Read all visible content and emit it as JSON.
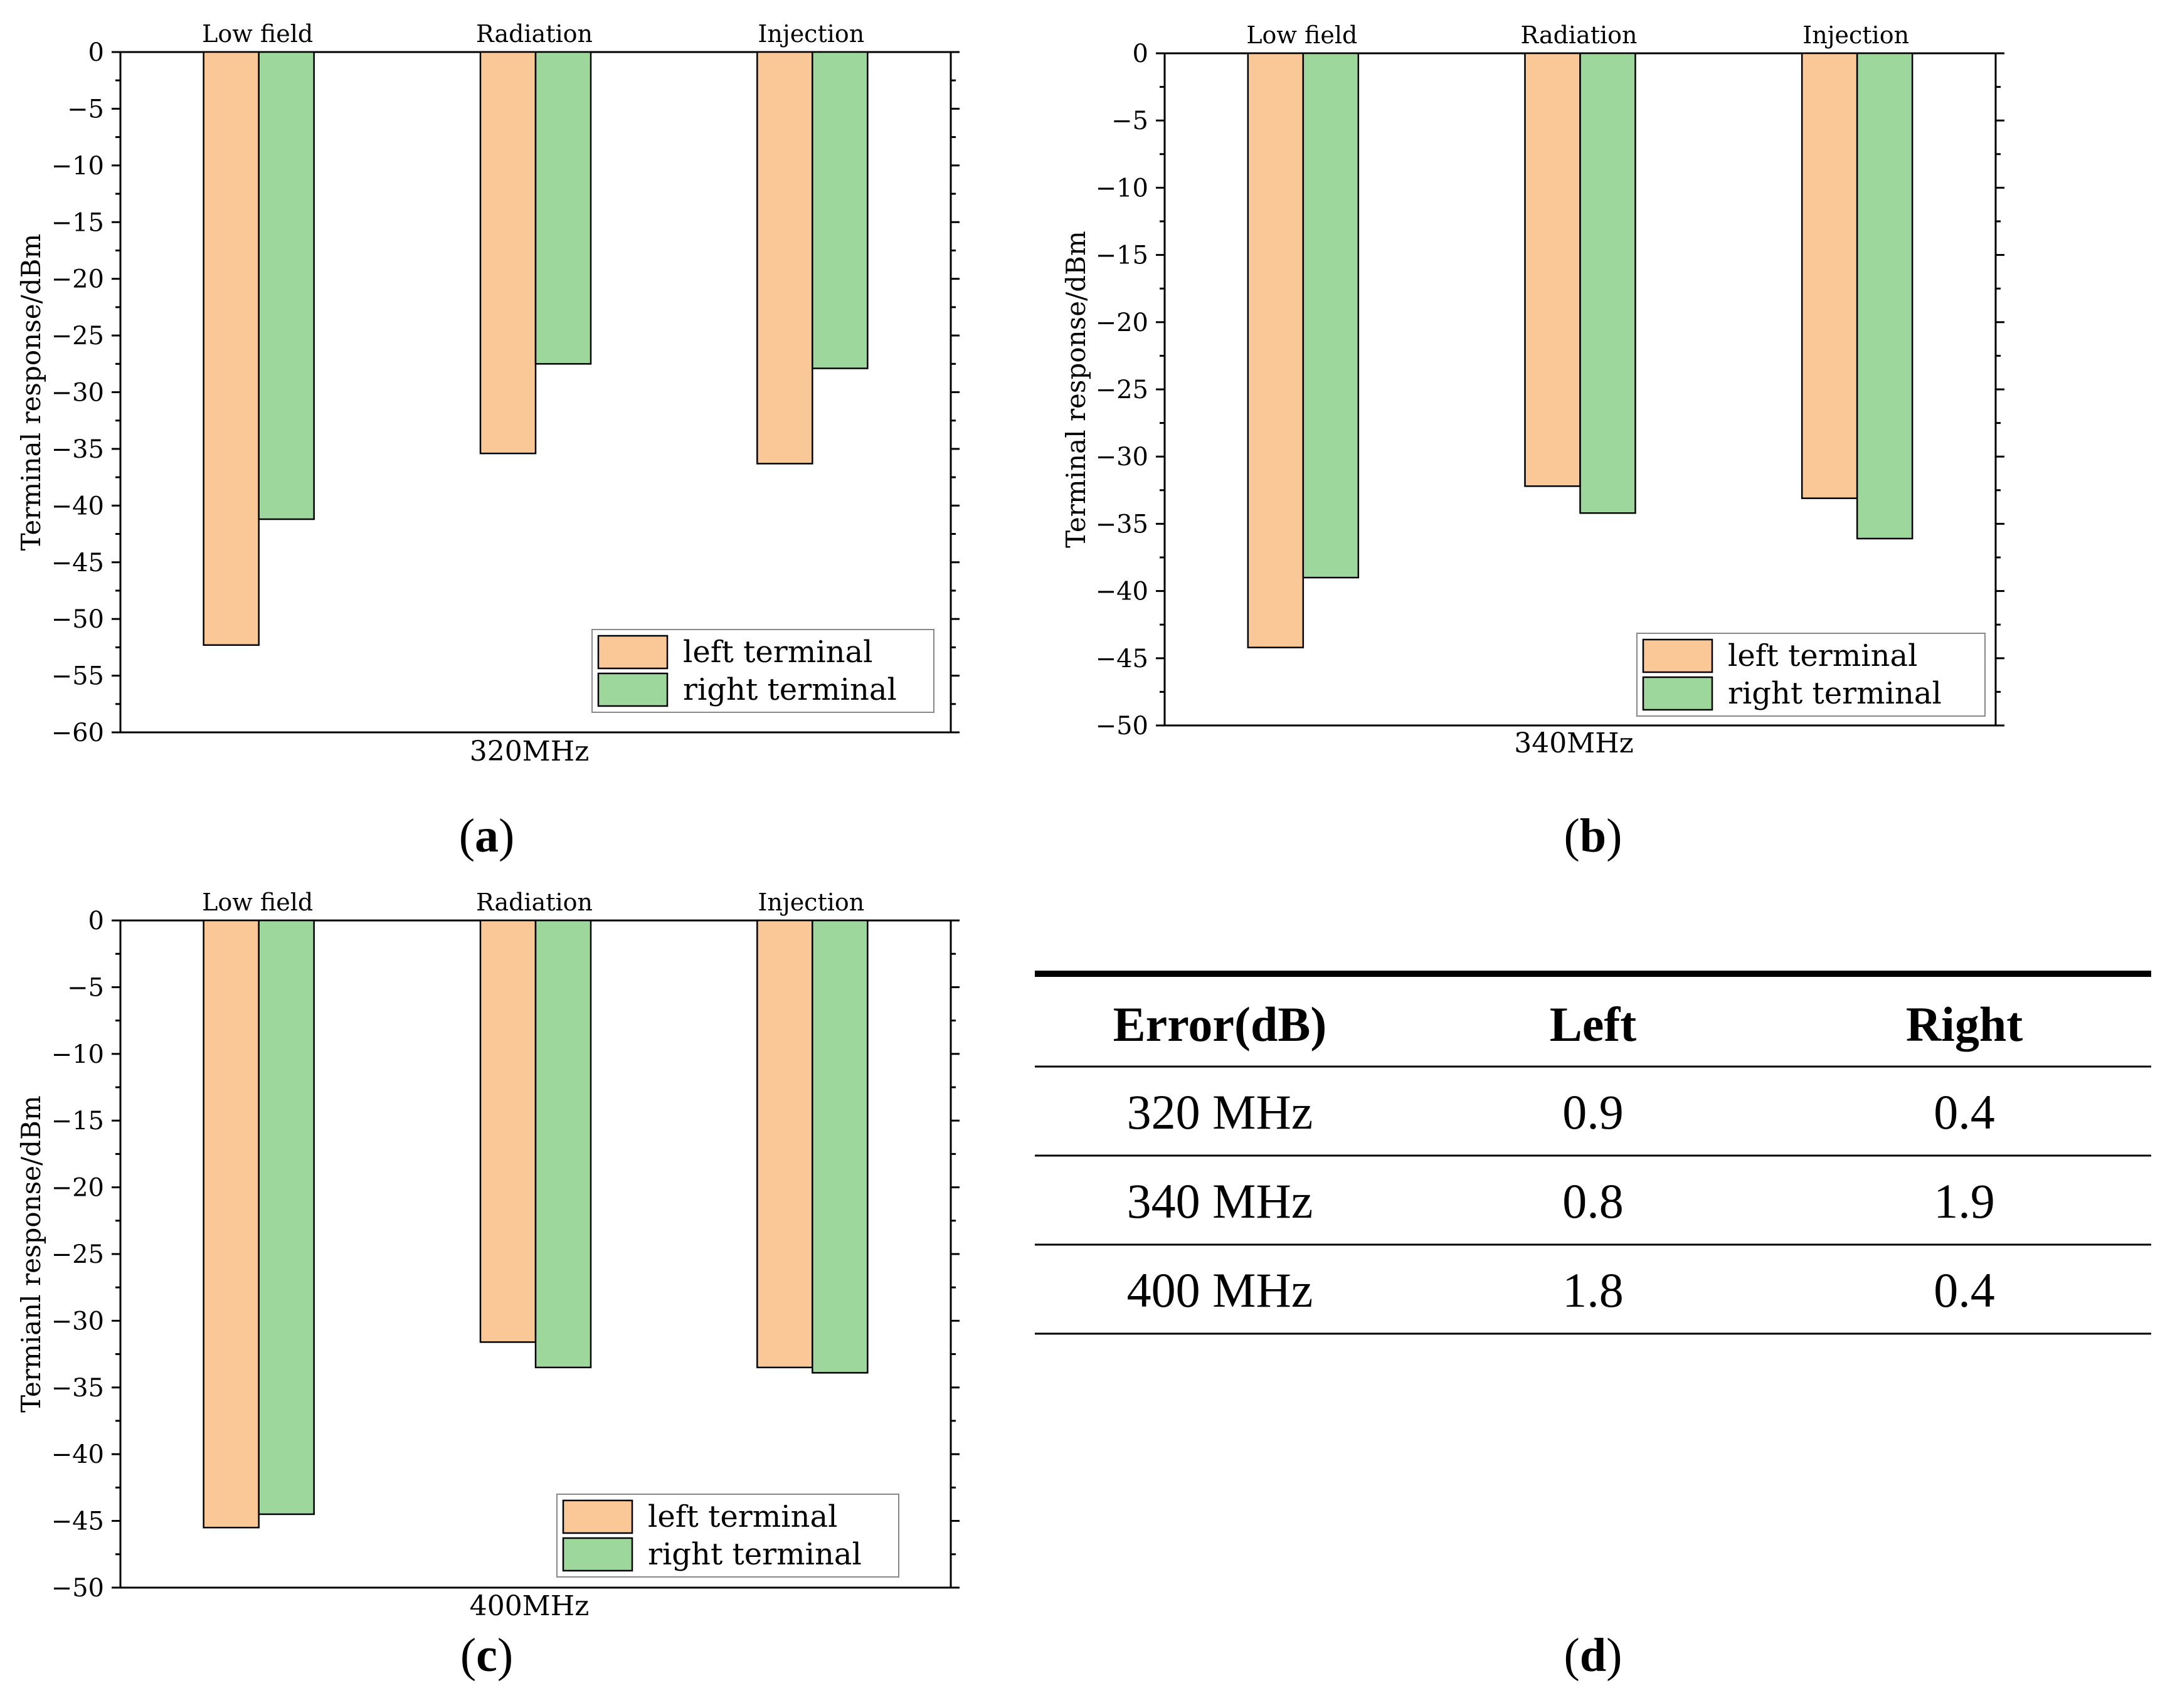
{
  "colors": {
    "left": "#FAC896",
    "right": "#9DD79B",
    "edge": "#000000"
  },
  "chart_data": [
    {
      "id": "a",
      "type": "bar",
      "panel_label": "a",
      "xlabel": "320MHz",
      "ylabel": "Terminal response/dBm",
      "categories": [
        "Low field",
        "Radiation",
        "Injection"
      ],
      "ylim": [
        -60,
        0
      ],
      "yticks": [
        0,
        -5,
        -10,
        -15,
        -20,
        -25,
        -30,
        -35,
        -40,
        -45,
        -50,
        -55,
        -60
      ],
      "series": [
        {
          "name": "left terminal",
          "values": [
            -52.3,
            -35.4,
            -36.3
          ]
        },
        {
          "name": "right terminal",
          "values": [
            -41.2,
            -27.5,
            -27.9
          ]
        }
      ],
      "legend": "bottom-right"
    },
    {
      "id": "b",
      "type": "bar",
      "panel_label": "b",
      "xlabel": "340MHz",
      "ylabel": "Terminal response/dBm",
      "categories": [
        "Low field",
        "Radiation",
        "Injection"
      ],
      "ylim": [
        -50,
        0
      ],
      "yticks": [
        0,
        -5,
        -10,
        -15,
        -20,
        -25,
        -30,
        -35,
        -40,
        -45,
        -50
      ],
      "series": [
        {
          "name": "left terminal",
          "values": [
            -44.2,
            -32.2,
            -33.1
          ]
        },
        {
          "name": "right terminal",
          "values": [
            -39.0,
            -34.2,
            -36.1
          ]
        }
      ],
      "legend": "bottom-right"
    },
    {
      "id": "c",
      "type": "bar",
      "panel_label": "c",
      "xlabel": "400MHz",
      "ylabel": "Termianl response/dBm",
      "categories": [
        "Low field",
        "Radiation",
        "Injection"
      ],
      "ylim": [
        -50,
        0
      ],
      "yticks": [
        0,
        -5,
        -10,
        -15,
        -20,
        -25,
        -30,
        -35,
        -40,
        -45,
        -50
      ],
      "series": [
        {
          "name": "left terminal",
          "values": [
            -45.5,
            -31.6,
            -33.5
          ]
        },
        {
          "name": "right terminal",
          "values": [
            -44.5,
            -33.5,
            -33.9
          ]
        }
      ],
      "legend": "bottom-right"
    }
  ],
  "table": {
    "panel_label": "d",
    "headers": [
      "Error(dB)",
      "Left",
      "Right"
    ],
    "rows": [
      [
        "320 MHz",
        "0.9",
        "0.4"
      ],
      [
        "340 MHz",
        "0.8",
        "1.9"
      ],
      [
        "400 MHz",
        "1.8",
        "0.4"
      ]
    ]
  }
}
